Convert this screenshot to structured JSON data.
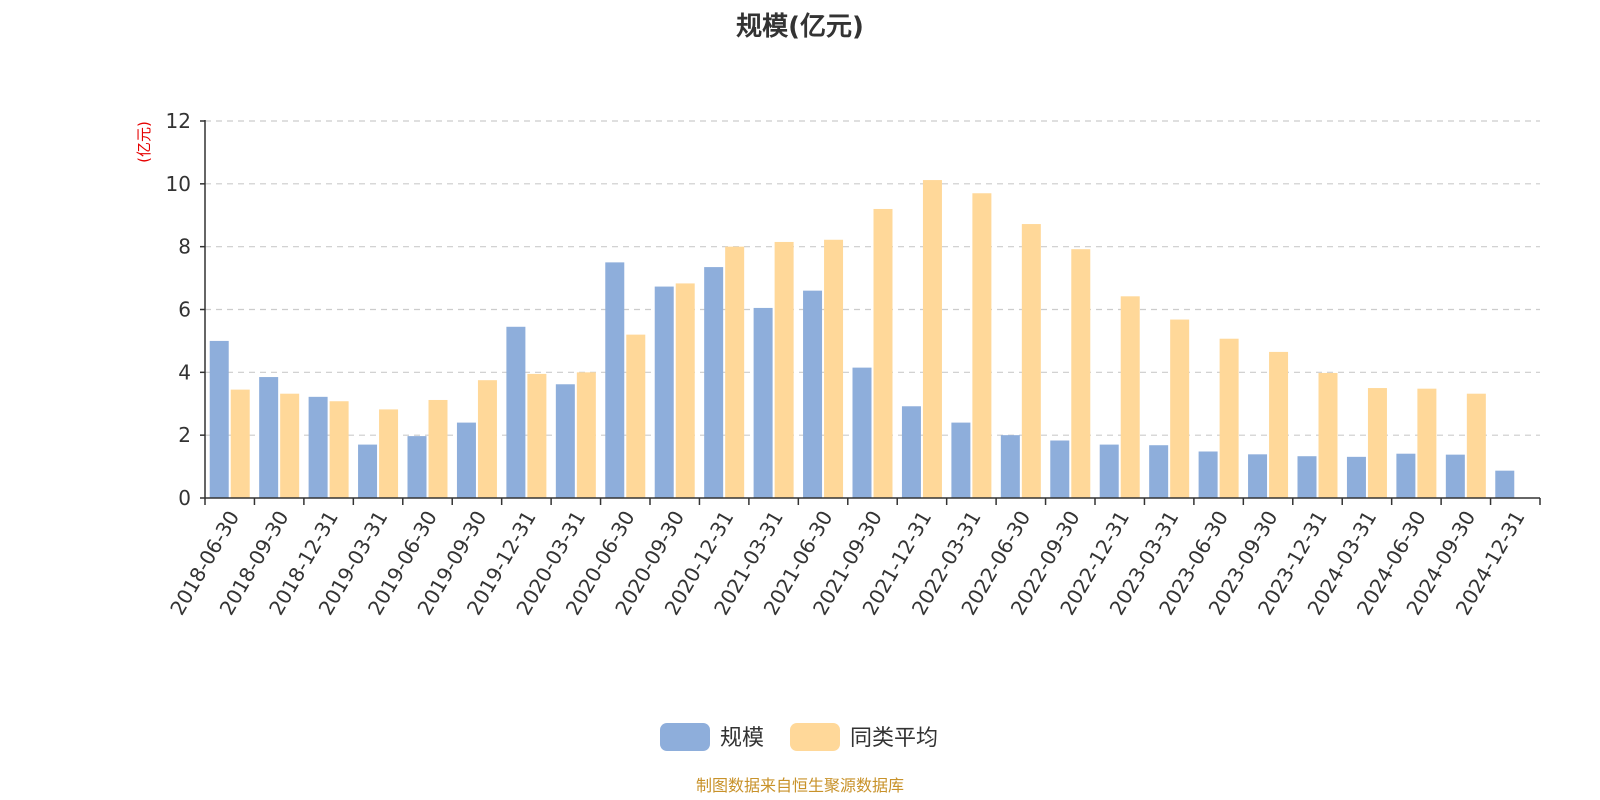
{
  "chart_data": {
    "type": "bar",
    "title": "规模(亿元)",
    "unit_label": "(亿元)",
    "ylim": [
      0,
      12
    ],
    "yticks": [
      0,
      2,
      4,
      6,
      8,
      10,
      12
    ],
    "grid": true,
    "legend_position": "bottom-center",
    "categories": [
      "2018-06-30",
      "2018-09-30",
      "2018-12-31",
      "2019-03-31",
      "2019-06-30",
      "2019-09-30",
      "2019-12-31",
      "2020-03-31",
      "2020-06-30",
      "2020-09-30",
      "2020-12-31",
      "2021-03-31",
      "2021-06-30",
      "2021-09-30",
      "2021-12-31",
      "2022-03-31",
      "2022-06-30",
      "2022-09-30",
      "2022-12-31",
      "2023-03-31",
      "2023-06-30",
      "2023-09-30",
      "2023-12-31",
      "2024-03-31",
      "2024-06-30",
      "2024-09-30",
      "2024-12-31"
    ],
    "series": [
      {
        "name": "规模",
        "color": "#8eaedb",
        "values": [
          5.0,
          3.85,
          3.22,
          1.7,
          1.97,
          2.4,
          5.45,
          3.62,
          7.5,
          6.73,
          7.35,
          6.05,
          6.6,
          4.15,
          2.92,
          2.4,
          2.0,
          1.83,
          1.7,
          1.68,
          1.48,
          1.39,
          1.33,
          1.31,
          1.41,
          1.38,
          0.87
        ]
      },
      {
        "name": "同类平均",
        "color": "#ffd899",
        "values": [
          3.45,
          3.32,
          3.08,
          2.82,
          3.12,
          3.75,
          3.95,
          4.0,
          5.2,
          6.83,
          8.0,
          8.15,
          8.22,
          9.2,
          10.12,
          9.7,
          8.72,
          7.92,
          6.42,
          5.68,
          5.07,
          4.65,
          3.98,
          3.5,
          3.48,
          3.32,
          null
        ]
      }
    ]
  },
  "source_note": "制图数据来自恒生聚源数据库"
}
